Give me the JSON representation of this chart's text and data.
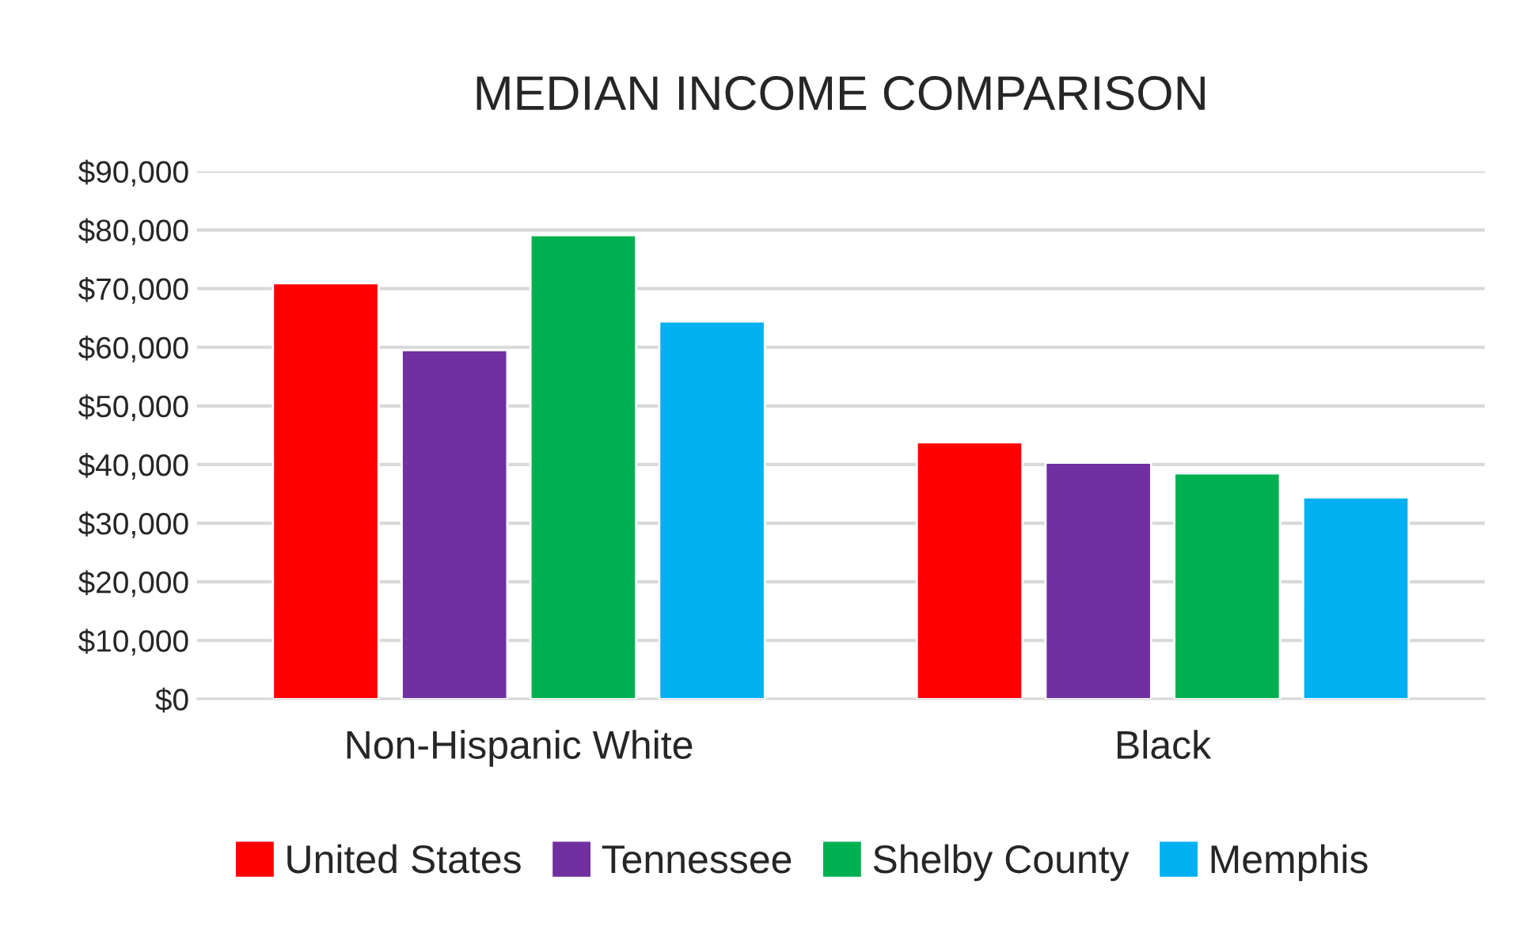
{
  "chart_data": {
    "type": "bar",
    "title": "MEDIAN INCOME COMPARISON",
    "categories": [
      "Non-Hispanic White",
      "Black"
    ],
    "series": [
      {
        "name": "United States",
        "color": "#ff0000",
        "values": [
          70900,
          43800
        ]
      },
      {
        "name": "Tennessee",
        "color": "#7030a0",
        "values": [
          59500,
          40300
        ]
      },
      {
        "name": "Shelby County",
        "color": "#00b050",
        "values": [
          79100,
          38500
        ]
      },
      {
        "name": "Memphis",
        "color": "#00b0f0",
        "values": [
          64400,
          34400
        ]
      }
    ],
    "ylim": [
      0,
      90000
    ],
    "yticks": [
      {
        "value": 0,
        "label": "$0"
      },
      {
        "value": 10000,
        "label": "$10,000"
      },
      {
        "value": 20000,
        "label": "$20,000"
      },
      {
        "value": 30000,
        "label": "$30,000"
      },
      {
        "value": 40000,
        "label": "$40,000"
      },
      {
        "value": 50000,
        "label": "$50,000"
      },
      {
        "value": 60000,
        "label": "$60,000"
      },
      {
        "value": 70000,
        "label": "$70,000"
      },
      {
        "value": 80000,
        "label": "$80,000"
      },
      {
        "value": 90000,
        "label": "$90,000"
      }
    ],
    "grid": "y",
    "legend": "bottom"
  }
}
